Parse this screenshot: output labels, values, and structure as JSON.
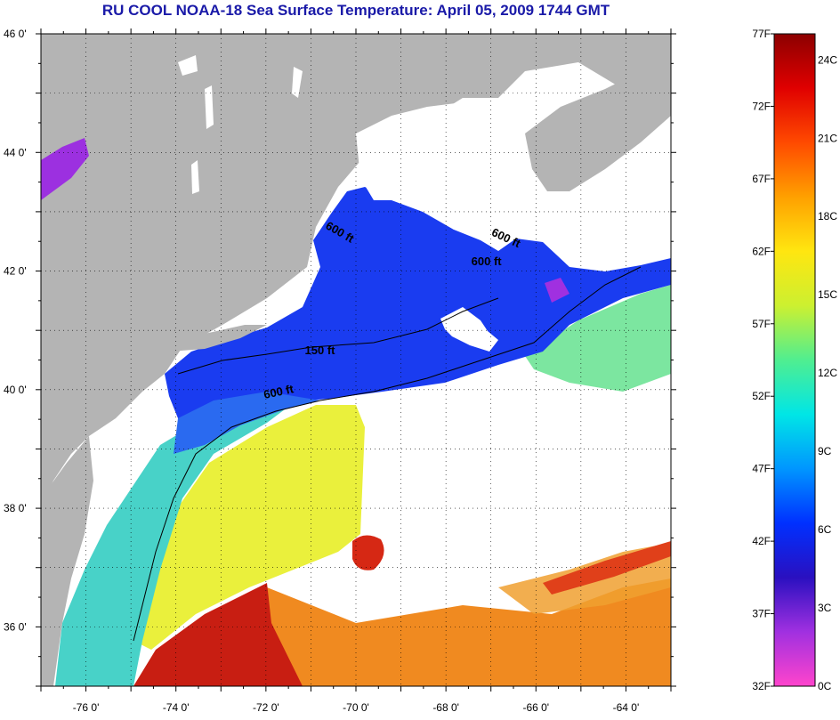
{
  "title": "RU COOL  NOAA-18  Sea Surface Temperature:  April 05, 2009 1744 GMT",
  "map": {
    "lon_range": [
      -77,
      -63
    ],
    "lat_range": [
      35,
      46
    ],
    "grid": true,
    "lat_ticks": [
      {
        "value": 46,
        "label": "46 0'"
      },
      {
        "value": 44,
        "label": "44 0'"
      },
      {
        "value": 42,
        "label": "42 0'"
      },
      {
        "value": 40,
        "label": "40 0'"
      },
      {
        "value": 38,
        "label": "38 0'"
      },
      {
        "value": 36,
        "label": "36 0'"
      }
    ],
    "lon_ticks": [
      {
        "value": -76,
        "label": "-76 0'"
      },
      {
        "value": -74,
        "label": "-74 0'"
      },
      {
        "value": -72,
        "label": "-72 0'"
      },
      {
        "value": -70,
        "label": "-70 0'"
      },
      {
        "value": -68,
        "label": "-68 0'"
      },
      {
        "value": -66,
        "label": "-66 0'"
      },
      {
        "value": -64,
        "label": "-64 0'"
      }
    ],
    "contour_labels": [
      {
        "text": "600 ft",
        "lon": -70.4,
        "lat": 42.6,
        "rot": 30
      },
      {
        "text": "600 ft",
        "lon": -66.7,
        "lat": 42.5,
        "rot": 25
      },
      {
        "text": "600 ft",
        "lon": -67.1,
        "lat": 42.1,
        "rot": 0
      },
      {
        "text": "150 ft",
        "lon": -70.8,
        "lat": 40.6,
        "rot": 0
      },
      {
        "text": "600 ft",
        "lon": -71.7,
        "lat": 39.9,
        "rot": -12
      }
    ],
    "colors": {
      "land": "#b4b4b4",
      "cloud": "#ffffff",
      "cold": "#1a3cf0",
      "mid": "#3cc8e6",
      "warm": "#f0f028",
      "hot": "#d21e14",
      "orange": "#f08a20"
    }
  },
  "colorbar": {
    "f_labels": [
      "77F",
      "72F",
      "67F",
      "62F",
      "57F",
      "52F",
      "47F",
      "42F",
      "37F",
      "32F"
    ],
    "c_labels": [
      "24C",
      "21C",
      "18C",
      "15C",
      "12C",
      "9C",
      "6C",
      "3C",
      "0C"
    ],
    "f_range": [
      32,
      77
    ],
    "stops": [
      "#ff44cc",
      "#a030e0",
      "#2a10c0",
      "#0030ff",
      "#0096ff",
      "#00e6e6",
      "#50ee90",
      "#ccf030",
      "#ffe610",
      "#ffa000",
      "#ff4a00",
      "#e00000",
      "#8c0000"
    ]
  }
}
